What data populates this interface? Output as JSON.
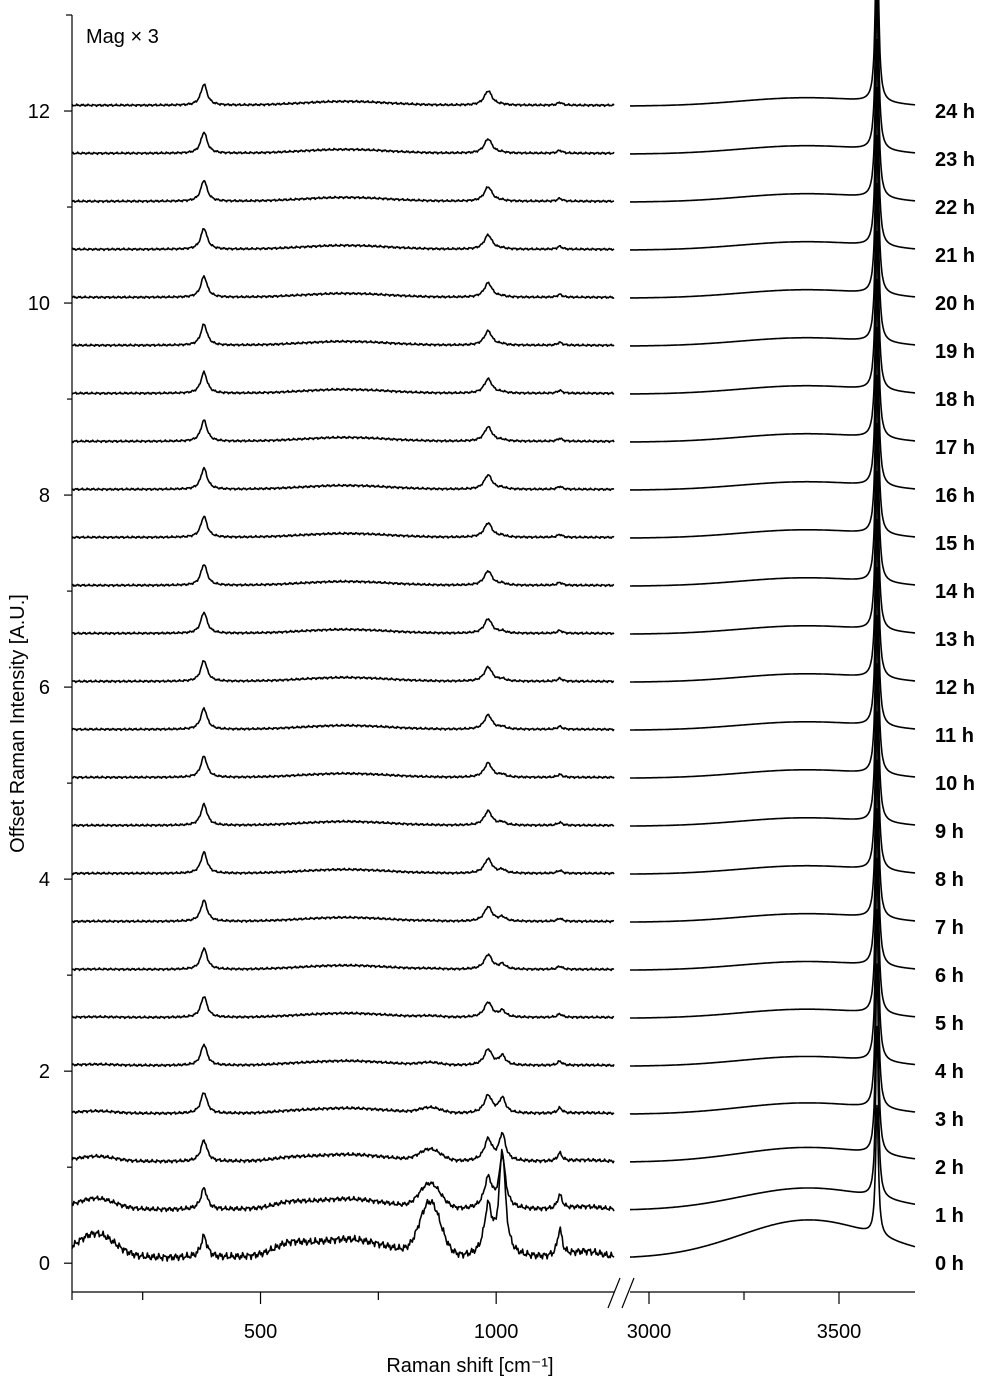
{
  "chart_data": {
    "type": "line",
    "annotation": "Mag × 3",
    "xlabel": "Raman shift [cm⁻¹]",
    "ylabel": "Offset Raman Intensity [A.U.]",
    "x_axis": {
      "scale": "broken",
      "segments": [
        {
          "xlim": [
            100,
            1250
          ],
          "ticks": [
            500,
            1000
          ],
          "minor_ticks": [
            100,
            250,
            750
          ]
        },
        {
          "xlim": [
            2950,
            3700
          ],
          "ticks": [
            3000,
            3500
          ],
          "minor_ticks": [
            3250
          ]
        }
      ]
    },
    "y_axis": {
      "ylim": [
        -0.3,
        13.0
      ],
      "ticks": [
        0,
        2,
        4,
        6,
        8,
        10,
        12
      ],
      "minor_ticks": [
        1,
        3,
        5,
        7,
        9,
        11
      ]
    },
    "grid": false,
    "series": [
      {
        "name": "0 h",
        "offset": 0.0
      },
      {
        "name": "1 h",
        "offset": 0.5
      },
      {
        "name": "2 h",
        "offset": 1.0
      },
      {
        "name": "3 h",
        "offset": 1.5
      },
      {
        "name": "4 h",
        "offset": 2.0
      },
      {
        "name": "5 h",
        "offset": 2.5
      },
      {
        "name": "6 h",
        "offset": 3.0
      },
      {
        "name": "7 h",
        "offset": 3.5
      },
      {
        "name": "8 h",
        "offset": 4.0
      },
      {
        "name": "9 h",
        "offset": 4.5
      },
      {
        "name": "10 h",
        "offset": 5.0
      },
      {
        "name": "11 h",
        "offset": 5.5
      },
      {
        "name": "12 h",
        "offset": 6.0
      },
      {
        "name": "13 h",
        "offset": 6.5
      },
      {
        "name": "14 h",
        "offset": 7.0
      },
      {
        "name": "15 h",
        "offset": 7.5
      },
      {
        "name": "16 h",
        "offset": 8.0
      },
      {
        "name": "17 h",
        "offset": 8.5
      },
      {
        "name": "18 h",
        "offset": 9.0
      },
      {
        "name": "19 h",
        "offset": 9.5
      },
      {
        "name": "20 h",
        "offset": 10.0
      },
      {
        "name": "21 h",
        "offset": 10.5
      },
      {
        "name": "22 h",
        "offset": 11.0
      },
      {
        "name": "23 h",
        "offset": 11.5
      },
      {
        "name": "24 h",
        "offset": 12.0
      }
    ],
    "peaks_cm1": [
      380,
      983,
      1013,
      1135,
      3600
    ]
  }
}
